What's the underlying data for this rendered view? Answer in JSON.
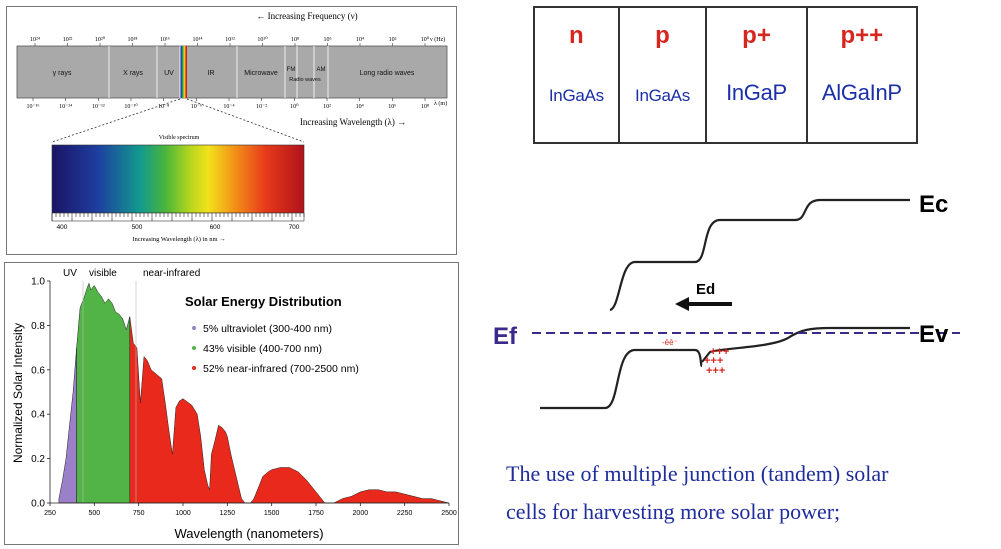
{
  "spectrum": {
    "frequency_axis_label": "← Increasing Frequency (ν)",
    "frequency_unit": "ν (Hz)",
    "frequency_ticks": [
      "10²⁴",
      "10²²",
      "10²⁰",
      "10¹⁸",
      "10¹⁶",
      "10¹⁴",
      "10¹²",
      "10¹⁰",
      "10⁸",
      "10⁶",
      "10⁴",
      "10²",
      "10⁰"
    ],
    "bands": [
      "γ rays",
      "X rays",
      "UV",
      "IR",
      "Microwave",
      "FM",
      "Radio waves",
      "AM",
      "Long radio waves"
    ],
    "wavelength_ticks": [
      "10⁻¹⁶",
      "10⁻¹⁴",
      "10⁻¹²",
      "10⁻¹⁰",
      "10⁻⁸",
      "10⁻⁶",
      "10⁻⁴",
      "10⁻²",
      "10⁰",
      "10²",
      "10⁴",
      "10⁶",
      "10⁸"
    ],
    "wavelength_unit": "λ (m)",
    "wavelength_axis_label": "Increasing Wavelength (λ) →",
    "visible_title": "Visible spectrum",
    "visible_ticks": [
      "400",
      "500",
      "600",
      "700"
    ],
    "visible_axis_label": "Increasing Wavelength (λ) in nm →"
  },
  "solar_chart": {
    "chart_data": {
      "type": "area",
      "title": "Solar Energy Distribution",
      "xlabel": "Wavelength (nanometers)",
      "ylabel": "Normalized Solar Intensity",
      "xlim": [
        250,
        2500
      ],
      "ylim": [
        0,
        1.0
      ],
      "x_ticks": [
        250,
        500,
        750,
        1000,
        1250,
        1500,
        1750,
        2000,
        2250,
        2500
      ],
      "y_ticks": [
        "0.0",
        "0.2",
        "0.4",
        "0.6",
        "0.8",
        "1.0"
      ],
      "regions": [
        "UV",
        "visible",
        "near-infrared"
      ],
      "region_bounds": [
        300,
        400,
        700,
        2500
      ],
      "region_colors": [
        "#9b7fc8",
        "#52b346",
        "#e8291c"
      ],
      "legend": [
        {
          "label": "5% ultraviolet (300-400 nm)",
          "color": "#9b7fc8"
        },
        {
          "label": "43% visible (400-700 nm)",
          "color": "#52b346"
        },
        {
          "label": "52% near-infrared (700-2500 nm)",
          "color": "#e8291c"
        }
      ],
      "x": [
        300,
        320,
        340,
        360,
        380,
        400,
        420,
        440,
        460,
        470,
        480,
        500,
        520,
        540,
        560,
        580,
        600,
        620,
        640,
        660,
        680,
        700,
        720,
        740,
        760,
        780,
        800,
        820,
        850,
        880,
        900,
        920,
        940,
        960,
        980,
        1000,
        1050,
        1080,
        1100,
        1120,
        1140,
        1150,
        1160,
        1180,
        1200,
        1220,
        1240,
        1250,
        1270,
        1300,
        1330,
        1350,
        1380,
        1400,
        1430,
        1450,
        1480,
        1500,
        1550,
        1600,
        1650,
        1700,
        1750,
        1800,
        1830,
        1850,
        1900,
        1950,
        2000,
        2050,
        2100,
        2150,
        2200,
        2250,
        2300,
        2350,
        2400,
        2450,
        2500
      ],
      "y": [
        0.02,
        0.1,
        0.2,
        0.35,
        0.5,
        0.7,
        0.88,
        0.92,
        0.97,
        0.99,
        0.96,
        0.98,
        0.95,
        0.93,
        0.9,
        0.92,
        0.9,
        0.86,
        0.85,
        0.83,
        0.78,
        0.84,
        0.72,
        0.7,
        0.45,
        0.66,
        0.64,
        0.6,
        0.58,
        0.56,
        0.45,
        0.33,
        0.22,
        0.43,
        0.46,
        0.47,
        0.44,
        0.4,
        0.3,
        0.15,
        0.08,
        0.06,
        0.22,
        0.28,
        0.35,
        0.34,
        0.32,
        0.3,
        0.22,
        0.12,
        0.02,
        0.0,
        0.0,
        0.02,
        0.08,
        0.12,
        0.14,
        0.15,
        0.16,
        0.16,
        0.14,
        0.1,
        0.05,
        0.0,
        0.0,
        0.0,
        0.02,
        0.03,
        0.05,
        0.06,
        0.06,
        0.05,
        0.05,
        0.04,
        0.03,
        0.02,
        0.02,
        0.01,
        0.0
      ]
    }
  },
  "junctions": [
    {
      "type": "n",
      "material": "InGaAs"
    },
    {
      "type": "p",
      "material": "InGaAs"
    },
    {
      "type": "p+",
      "material": "InGaP"
    },
    {
      "type": "p++",
      "material": "AlGaInP"
    }
  ],
  "band_diagram": {
    "ec_label": "Ec",
    "ev_label": "Ev",
    "ef_label": "Ef",
    "field_label": "Ed",
    "negative_charges": "-ēē⁻",
    "positive_charges": [
      "+++",
      "+++",
      "+++"
    ]
  },
  "caption": {
    "line1": "The use of multiple junction (tandem) solar",
    "line2": "cells for harvesting more solar power;"
  },
  "colors": {
    "junction_type": "#d6261e",
    "junction_material": "#1b2fa6",
    "ef": "#3b2a8a",
    "caption": "#1f2c9c"
  }
}
